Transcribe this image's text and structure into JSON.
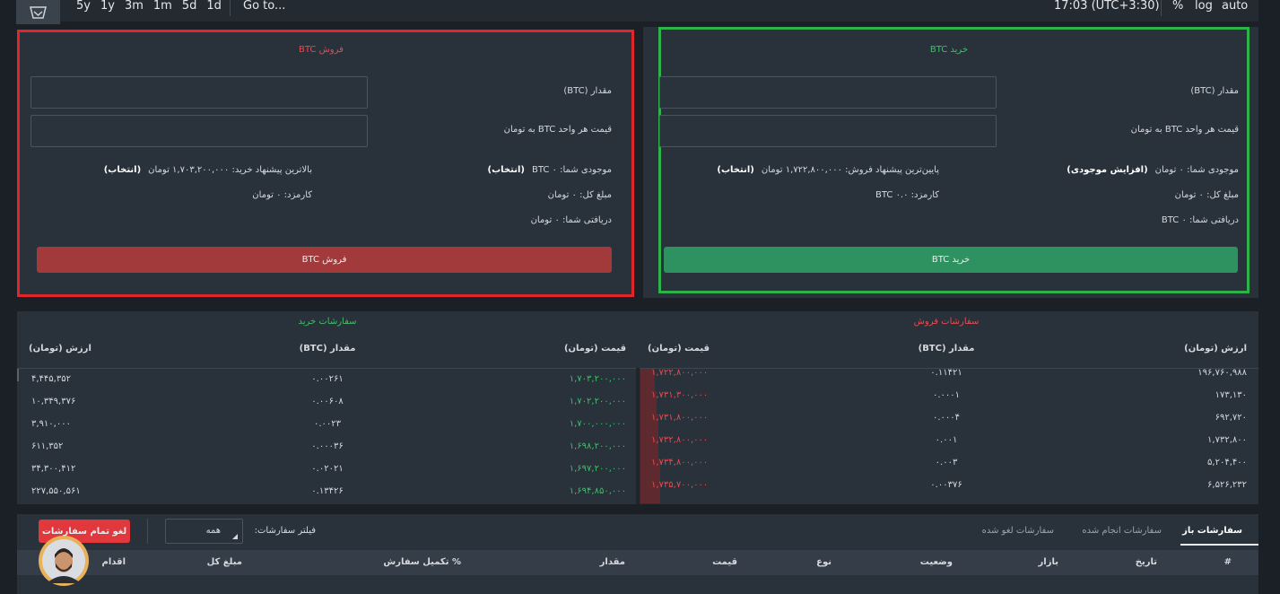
{
  "toolbar": {
    "ranges": [
      "5y",
      "1y",
      "3m",
      "1m",
      "5d",
      "1d"
    ],
    "goto": "Go to...",
    "time": "17:03 (UTC+3:30)",
    "percent": "%",
    "log": "log",
    "auto": "auto"
  },
  "sell_form": {
    "title": "فروش BTC",
    "amount_label": "مقدار (BTC)",
    "price_label": "قیمت هر واحد BTC به تومان",
    "balance": "موجودی شما: ۰ BTC",
    "balance_action": "(انتخاب)",
    "best_offer": "بالاترین پیشنهاد خرید: ۱,۷۰۳,۲۰۰,۰۰۰ تومان",
    "best_offer_action": "(انتخاب)",
    "total": "مبلغ کل: ۰ تومان",
    "fee": "کارمزد: ۰ تومان",
    "receive": "دریافتی شما: ۰ تومان",
    "button": "فروش BTC"
  },
  "buy_form": {
    "title": "خرید BTC",
    "amount_label": "مقدار (BTC)",
    "price_label": "قیمت هر واحد BTC به تومان",
    "balance": "موجودی شما: ۰ تومان",
    "balance_action": "(افزایش موجودی)",
    "best_offer": "پایین‌ترین پیشنهاد فروش: ۱,۷۲۲,۸۰۰,۰۰۰ تومان",
    "best_offer_action": "(انتخاب)",
    "total": "مبلغ کل: ۰ تومان",
    "fee": "کارمزد: ۰.۰ BTC",
    "receive": "دریافتی شما: ۰ BTC",
    "button": "خرید BTC"
  },
  "buy_orders": {
    "title": "سفارشات خرید",
    "columns": [
      "قیمت (تومان)",
      "مقدار (BTC)",
      "ارزش (تومان)"
    ],
    "rows": [
      [
        "۱,۷۰۳,۲۰۰,۰۰۰",
        "۰.۰۰۲۶۱",
        "۴,۴۴۵,۳۵۲"
      ],
      [
        "۱,۷۰۲,۲۰۰,۰۰۰",
        "۰.۰۰۶۰۸",
        "۱۰,۳۴۹,۳۷۶"
      ],
      [
        "۱,۷۰۰,۰۰۰,۰۰۰",
        "۰.۰۰۲۳",
        "۳,۹۱۰,۰۰۰"
      ],
      [
        "۱,۶۹۸,۲۰۰,۰۰۰",
        "۰.۰۰۰۳۶",
        "۶۱۱,۳۵۲"
      ],
      [
        "۱,۶۹۷,۲۰۰,۰۰۰",
        "۰.۰۲۰۲۱",
        "۳۴,۳۰۰,۴۱۲"
      ],
      [
        "۱,۶۹۴,۸۵۰,۰۰۰",
        "۰.۱۳۴۲۶",
        "۲۲۷,۵۵۰,۵۶۱"
      ]
    ]
  },
  "sell_orders": {
    "title": "سفارشات فروش",
    "columns": [
      "قیمت (تومان)",
      "مقدار (BTC)",
      "ارزش (تومان)"
    ],
    "rows": [
      [
        "۱,۷۲۲,۸۰۰,۰۰۰",
        "۰.۱۱۴۲۱",
        "۱۹۶,۷۶۰,۹۸۸"
      ],
      [
        "۱,۷۳۱,۳۰۰,۰۰۰",
        "۰.۰۰۰۱",
        "۱۷۳,۱۳۰"
      ],
      [
        "۱,۷۳۱,۸۰۰,۰۰۰",
        "۰.۰۰۰۴",
        "۶۹۲,۷۲۰"
      ],
      [
        "۱,۷۳۲,۸۰۰,۰۰۰",
        "۰.۰۰۱",
        "۱,۷۳۲,۸۰۰"
      ],
      [
        "۱,۷۳۴,۸۰۰,۰۰۰",
        "۰.۰۰۳",
        "۵,۲۰۴,۴۰۰"
      ],
      [
        "۱,۷۳۵,۷۰۰,۰۰۰",
        "۰.۰۰۳۷۶",
        "۶,۵۲۶,۲۳۲"
      ]
    ]
  },
  "orders": {
    "tabs": [
      "سفارشات باز",
      "سفارشات انجام شده",
      "سفارشات لغو شده"
    ],
    "filter_label": "فیلتر سفارشات:",
    "filter_value": "همه",
    "cancel_all": "لغو تمام سفارشات",
    "columns": [
      "#",
      "تاریخ",
      "بازار",
      "وضعیت",
      "نوع",
      "قیمت",
      "مقدار",
      "% تکمیل سفارش",
      "مبلغ کل",
      "اقدام"
    ]
  }
}
